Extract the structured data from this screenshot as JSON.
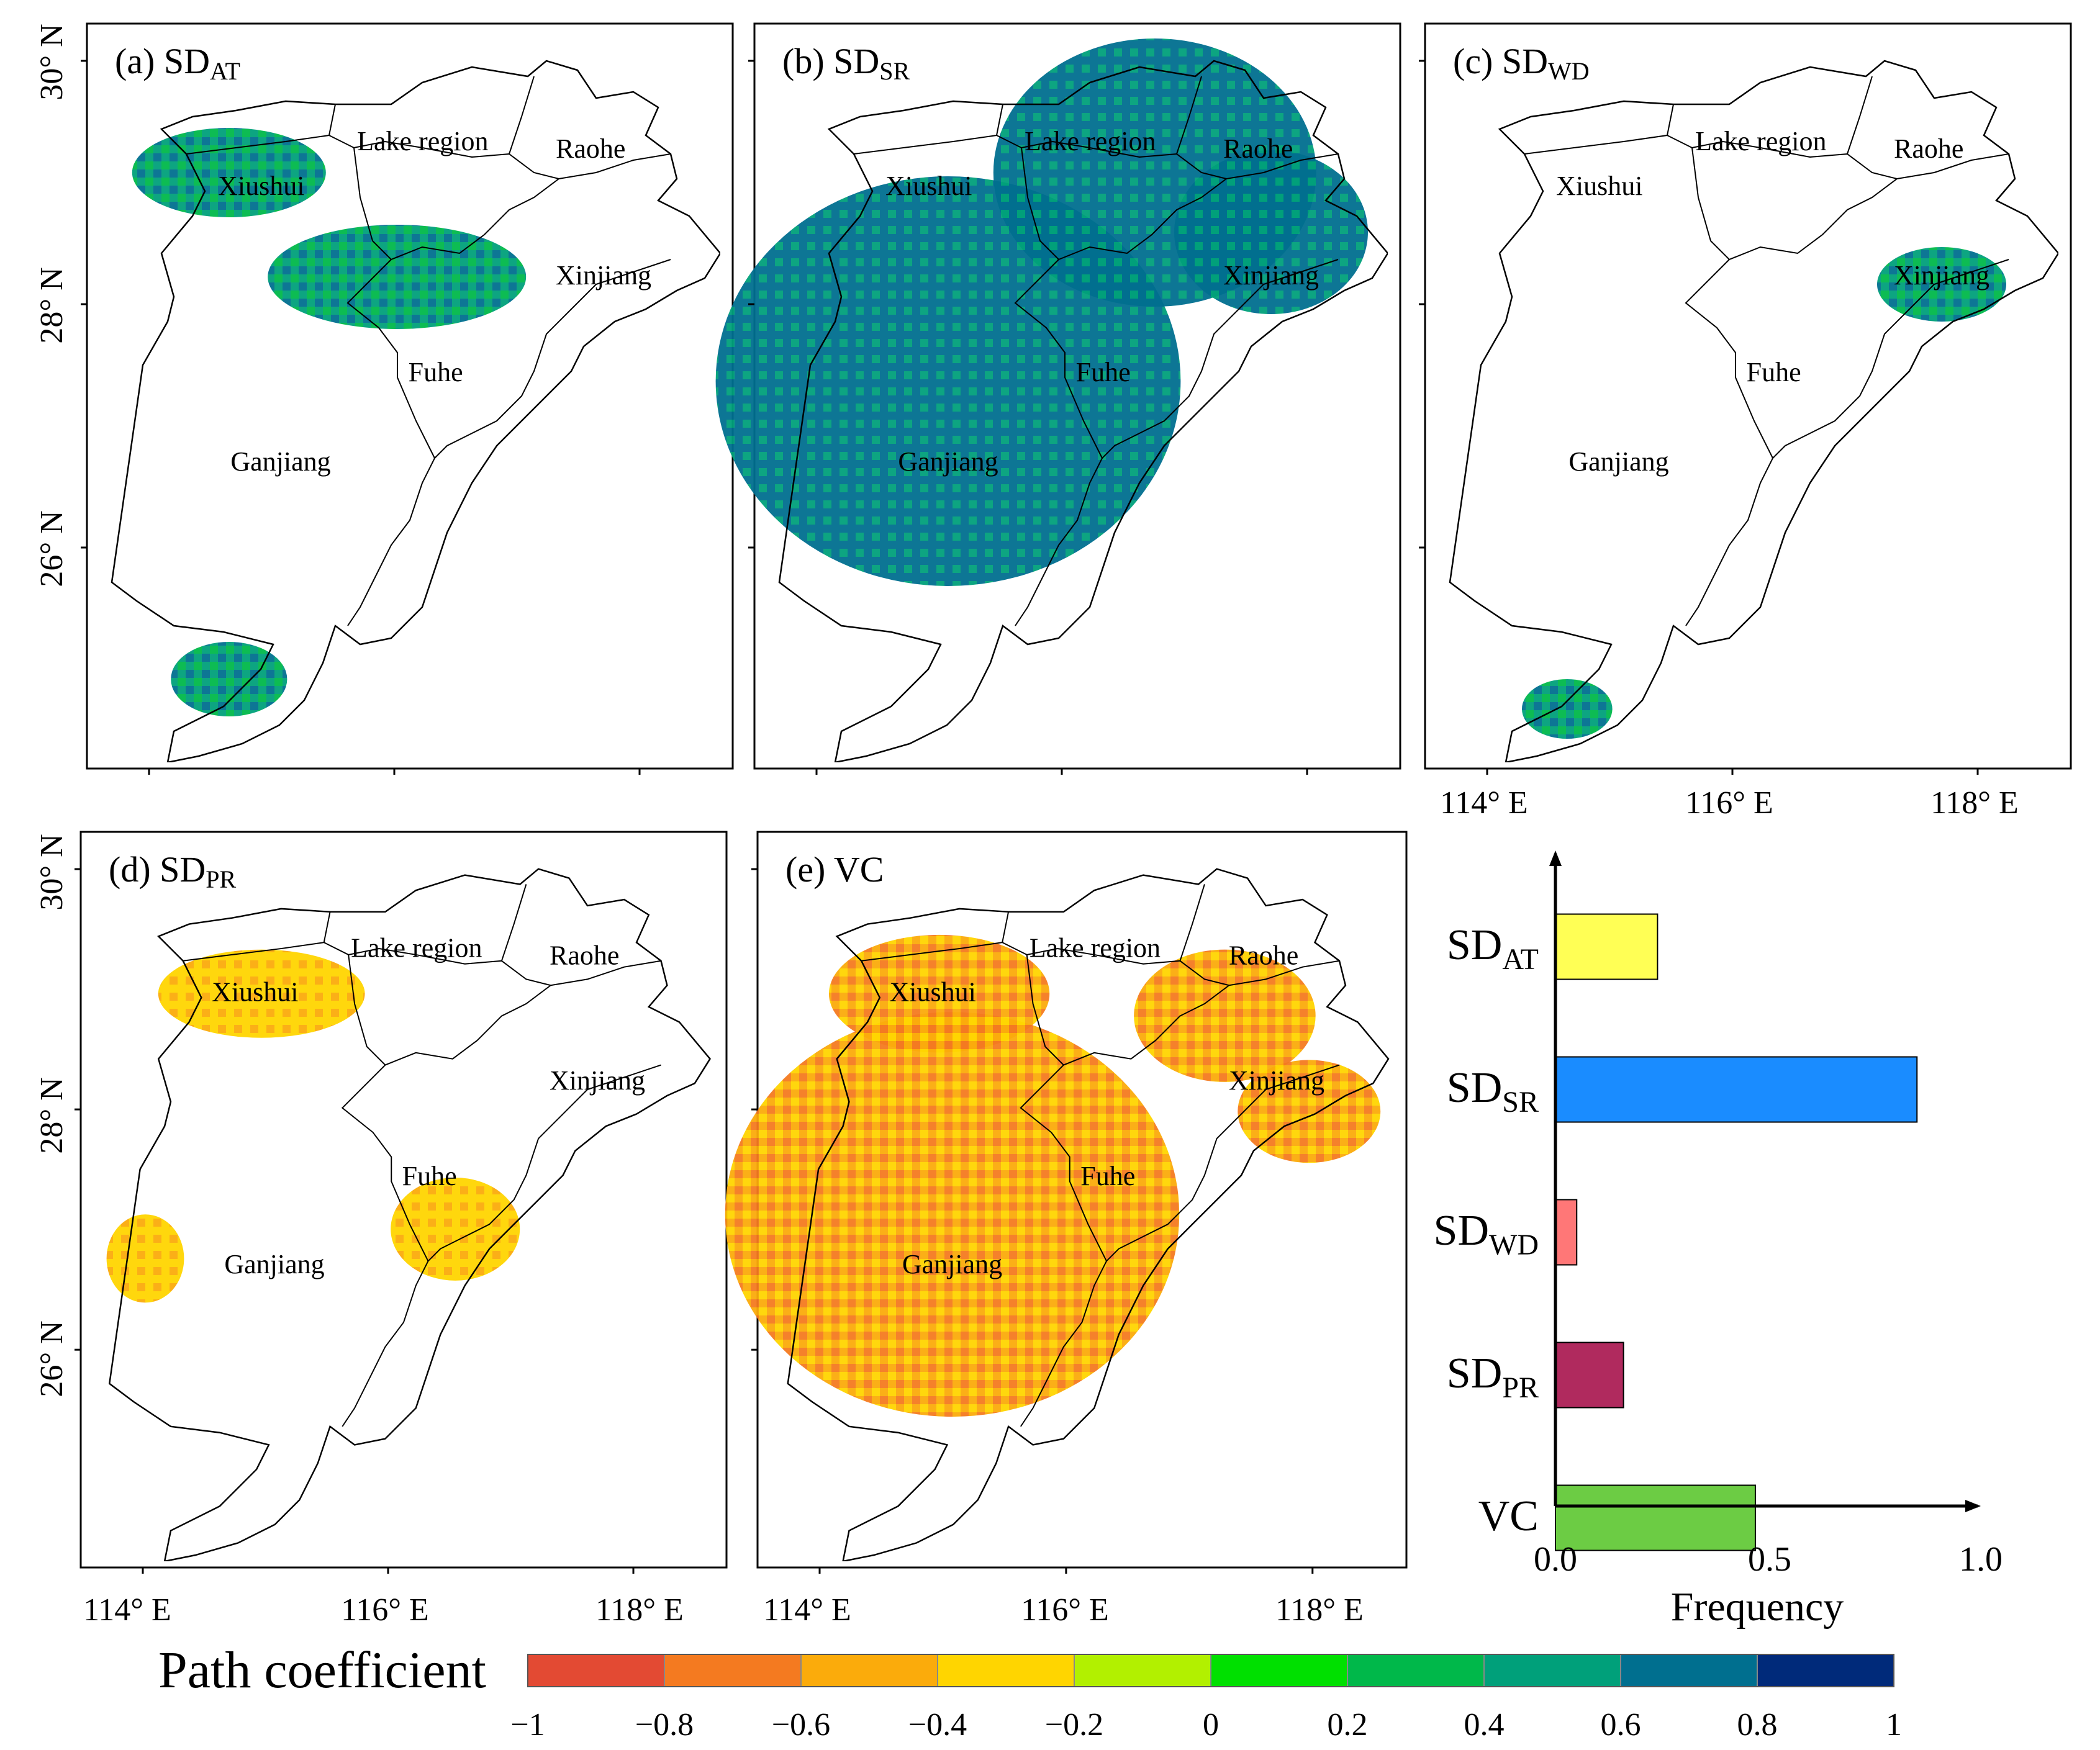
{
  "figure": {
    "colorbar_title": "Path coefficient",
    "colorbar_ticks": [
      "−1",
      "−0.8",
      "−0.6",
      "−0.4",
      "−0.2",
      "0",
      "0.2",
      "0.4",
      "0.6",
      "0.8",
      "1"
    ],
    "colorbar_colors": [
      "#e34a33",
      "#f47a20",
      "#fbab0b",
      "#ffd500",
      "#b2f000",
      "#00e000",
      "#00b84a",
      "#00a07a",
      "#006f8f",
      "#002a7a"
    ]
  },
  "maps": {
    "lat_labels": [
      "30° N",
      "28° N",
      "26° N"
    ],
    "lon_labels": [
      "114° E",
      "116° E",
      "118° E"
    ],
    "region_labels": [
      "Lake region",
      "Raohe",
      "Xiushui",
      "Xinjiang",
      "Fuhe",
      "Ganjiang"
    ],
    "panels": [
      {
        "label": "(a) SD",
        "sub": "AT"
      },
      {
        "label": "(b) SD",
        "sub": "SR"
      },
      {
        "label": "(c) SD",
        "sub": "WD"
      },
      {
        "label": "(d) SD",
        "sub": "PR"
      },
      {
        "label": "(e) VC",
        "sub": ""
      }
    ]
  },
  "chart_data": {
    "type": "bar",
    "orientation": "horizontal",
    "title": "",
    "xlabel": "Frequency",
    "ylabel": "",
    "xlim": [
      0,
      1.0
    ],
    "x_ticks": [
      "0.0",
      "0.5",
      "1.0"
    ],
    "categories": [
      {
        "main": "SD",
        "sub": "AT"
      },
      {
        "main": "SD",
        "sub": "SR"
      },
      {
        "main": "SD",
        "sub": "WD"
      },
      {
        "main": "SD",
        "sub": "PR"
      },
      {
        "main": "VC",
        "sub": ""
      }
    ],
    "values": [
      0.24,
      0.85,
      0.05,
      0.16,
      0.47
    ],
    "colors": [
      "#ffff55",
      "#1a8cff",
      "#ff7777",
      "#b02a5e",
      "#6ccc44"
    ]
  }
}
